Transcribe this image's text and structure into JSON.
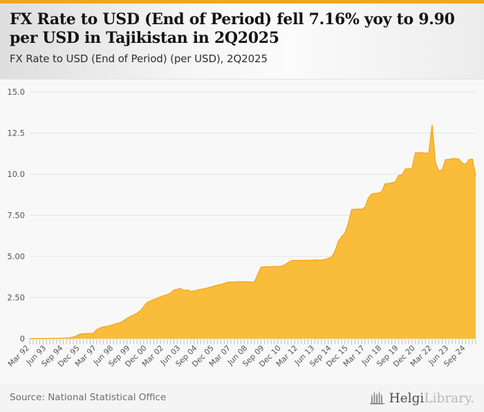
{
  "accent_color": "#F0A51F",
  "header": {
    "title_line1": "FX Rate to USD (End of Period) fell 7.16% yoy to 9.90",
    "title_line2": "per USD in Tajikistan in 2Q2025",
    "subtitle": "FX Rate to USD (End of Period) (per USD), 2Q2025"
  },
  "footer": {
    "source": "Source: National Statistical Office",
    "logo_primary": "Helgi",
    "logo_secondary": "Library.",
    "logo_icon": "building-bars-icon"
  },
  "chart_data": {
    "type": "area",
    "title": "FX Rate to USD (End of Period) (per USD), 2Q2025",
    "country": "Tajikistan",
    "frequency": "quarterly",
    "x_start_label": "Mar 92",
    "x_end_label": "Jun 25",
    "x_tick_labels": [
      "Mar 92",
      "Jun 93",
      "Sep 94",
      "Dec 95",
      "Mar 97",
      "Jun 98",
      "Sep 99",
      "Dec 00",
      "Mar 02",
      "Jun 03",
      "Sep 04",
      "Dec 05",
      "Mar 07",
      "Jun 08",
      "Sep 09",
      "Dec 10",
      "Mar 12",
      "Jun 13",
      "Sep 14",
      "Dec 15",
      "Mar 17",
      "Jun 18",
      "Sep 19",
      "Dec 20",
      "Mar 22",
      "Jun 23",
      "Sep 24"
    ],
    "x_label_every": 5,
    "ylim": [
      0,
      15
    ],
    "y_ticks": [
      {
        "label": "15.0",
        "value": 15
      },
      {
        "label": "12.5",
        "value": 12.5
      },
      {
        "label": "10.0",
        "value": 10
      },
      {
        "label": "7.50",
        "value": 7.5
      },
      {
        "label": "5.00",
        "value": 5
      },
      {
        "label": "2.50",
        "value": 2.5
      },
      {
        "label": "0",
        "value": 0
      }
    ],
    "grid": true,
    "legend": false,
    "fill_color": "#F9BD3B",
    "line_color": "#F2A81D",
    "tick_color": "#b3bdd1",
    "grid_color": "#e3e3e3",
    "label_color": "#555555",
    "last_value": 9.9,
    "yoy_change_pct": -7.16,
    "values": [
      0.01,
      0.01,
      0.01,
      0.01,
      0.01,
      0.01,
      0.02,
      0.02,
      0.02,
      0.03,
      0.03,
      0.04,
      0.06,
      0.1,
      0.18,
      0.28,
      0.3,
      0.31,
      0.32,
      0.33,
      0.56,
      0.65,
      0.72,
      0.75,
      0.8,
      0.86,
      0.94,
      0.98,
      1.1,
      1.24,
      1.35,
      1.44,
      1.55,
      1.7,
      1.95,
      2.2,
      2.3,
      2.38,
      2.45,
      2.55,
      2.62,
      2.68,
      2.78,
      2.96,
      3.0,
      3.05,
      2.93,
      2.97,
      2.88,
      2.9,
      2.96,
      3.0,
      3.04,
      3.08,
      3.14,
      3.2,
      3.26,
      3.3,
      3.36,
      3.43,
      3.44,
      3.45,
      3.46,
      3.46,
      3.47,
      3.46,
      3.44,
      3.45,
      3.9,
      4.35,
      4.37,
      4.37,
      4.38,
      4.4,
      4.39,
      4.4,
      4.48,
      4.62,
      4.74,
      4.76,
      4.76,
      4.76,
      4.77,
      4.76,
      4.77,
      4.78,
      4.78,
      4.77,
      4.82,
      4.88,
      4.96,
      5.31,
      5.9,
      6.2,
      6.43,
      7.0,
      7.85,
      7.87,
      7.88,
      7.87,
      8.0,
      8.55,
      8.8,
      8.83,
      8.85,
      8.95,
      9.42,
      9.43,
      9.48,
      9.53,
      9.92,
      9.95,
      10.32,
      10.33,
      10.35,
      11.3,
      11.3,
      11.31,
      11.28,
      11.28,
      13.0,
      10.7,
      10.2,
      10.25,
      10.88,
      10.9,
      10.95,
      10.94,
      10.92,
      10.66,
      10.6,
      10.88,
      10.92,
      9.9
    ]
  }
}
